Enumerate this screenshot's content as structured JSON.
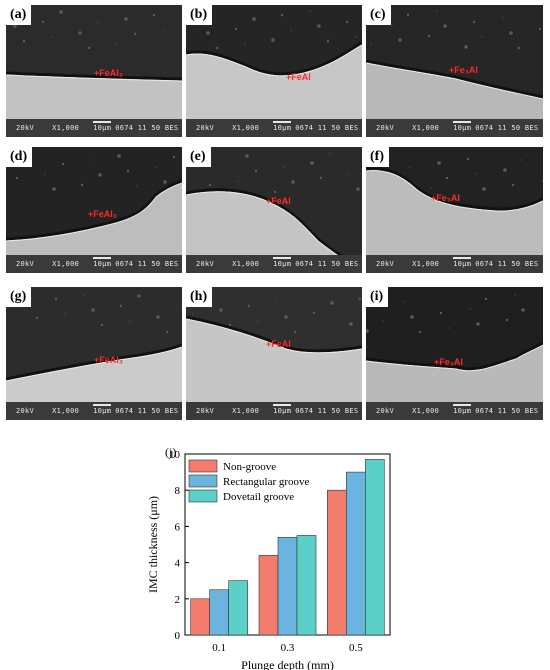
{
  "panels": [
    {
      "label": "(a)",
      "phase": "+FeAl₃"
    },
    {
      "label": "(b)",
      "phase": "+FeAl"
    },
    {
      "label": "(c)",
      "phase": "+Fe₃Al"
    },
    {
      "label": "(d)",
      "phase": "+FeAl₃"
    },
    {
      "label": "(e)",
      "phase": "+FeAl"
    },
    {
      "label": "(f)",
      "phase": "+Fe₃Al"
    },
    {
      "label": "(g)",
      "phase": "+FeAl₃"
    },
    {
      "label": "(h)",
      "phase": "+FeAl"
    },
    {
      "label": "(i)",
      "phase": "+Fe₃Al"
    }
  ],
  "sem_info": {
    "voltage": "20kV",
    "magnification": "X1,000",
    "scale": "10μm",
    "id": "0674 11 50 BES"
  },
  "chart_data": {
    "type": "bar",
    "panel_label": "(j)",
    "categories": [
      "0.1",
      "0.3",
      "0.5"
    ],
    "series": [
      {
        "name": "Non-groove",
        "values": [
          2.0,
          4.4,
          8.0
        ],
        "color": "#f47c6e"
      },
      {
        "name": "Rectangular groove",
        "values": [
          2.5,
          5.4,
          9.0
        ],
        "color": "#6cb4e0"
      },
      {
        "name": "Dovetail groove",
        "values": [
          3.0,
          5.5,
          9.7
        ],
        "color": "#5cd0c8"
      }
    ],
    "xlabel": "Plunge depth (mm)",
    "ylabel": "IMC thickness (μm)",
    "ylim": [
      0,
      10
    ],
    "yticks": [
      0,
      2,
      4,
      6,
      8,
      10
    ],
    "legend": "top-left",
    "grid": false
  }
}
